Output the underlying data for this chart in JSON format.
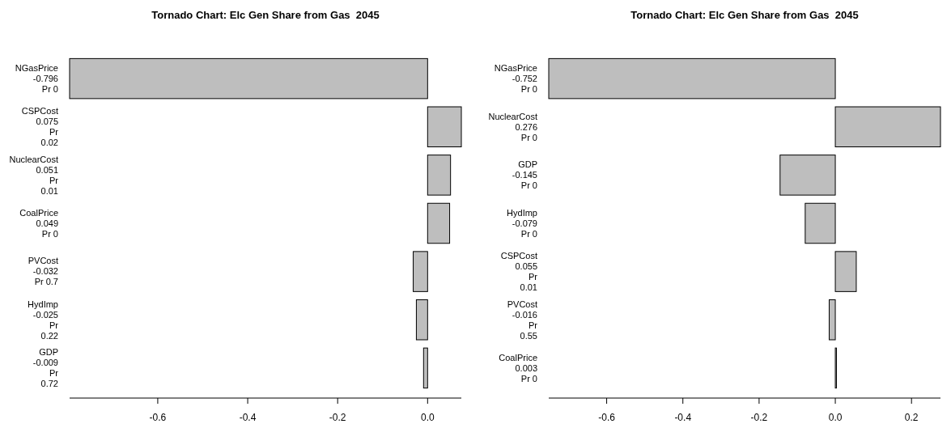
{
  "chart_data": [
    {
      "type": "bar",
      "orientation": "horizontal",
      "title": "Tornado Chart: Elc Gen Share from Gas  2045",
      "categories": [
        "NGasPrice\n-0.796\nPr 0",
        "CSPCost\n0.075\nPr\n0.02",
        "NuclearCost\n0.051\nPr\n0.01",
        "CoalPrice\n0.049\nPr 0",
        "PVCost\n-0.032\nPr 0.7",
        "HydImp\n-0.025\nPr\n0.22",
        "GDP\n-0.009\nPr\n0.72"
      ],
      "values": [
        -0.796,
        0.075,
        0.051,
        0.049,
        -0.032,
        -0.025,
        -0.009
      ],
      "color": "#bebebe",
      "xlim": [
        -0.796,
        0.075
      ],
      "xticks": [
        -0.6,
        -0.4,
        -0.2,
        {
          "value": 0,
          "label": "0.0"
        }
      ],
      "tick_labels": "x"
    },
    {
      "type": "bar",
      "orientation": "horizontal",
      "title": "Tornado Chart: Elc Gen Share from Gas  2045",
      "categories": [
        "NGasPrice\n-0.752\nPr 0",
        "NuclearCost\n0.276\nPr 0",
        "GDP\n-0.145\nPr 0",
        "HydImp\n-0.079\nPr 0",
        "CSPCost\n0.055\nPr\n0.01",
        "PVCost\n-0.016\nPr\n0.55",
        "CoalPrice\n0.003\nPr 0"
      ],
      "values": [
        -0.752,
        0.276,
        -0.145,
        -0.079,
        0.055,
        -0.016,
        0.003
      ],
      "color": "#bebebe",
      "xlim": [
        -0.752,
        0.276
      ],
      "xticks": [
        -0.6,
        -0.4,
        -0.2,
        {
          "value": 0,
          "label": "0.0"
        },
        0.2
      ],
      "tick_labels": "x"
    }
  ]
}
